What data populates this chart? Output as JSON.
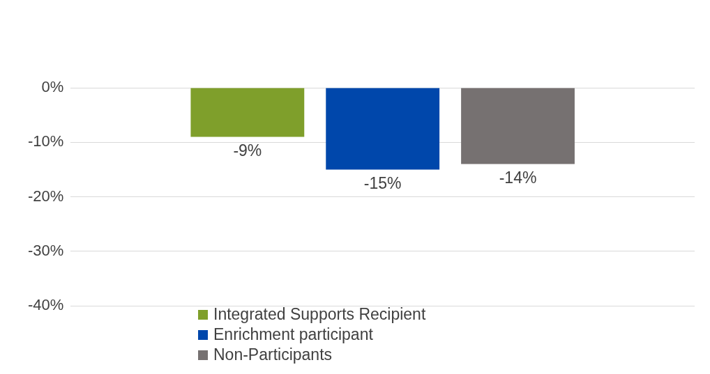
{
  "chart_data": {
    "type": "bar",
    "categories": [
      null
    ],
    "series": [
      {
        "name": "Integrated Supports Recipient",
        "color": "#7f9f2b",
        "values": [
          -9
        ],
        "value_labels": [
          "-9%"
        ]
      },
      {
        "name": "Enrichment participant",
        "color": "#0047ab",
        "values": [
          -15
        ],
        "value_labels": [
          "-15%"
        ]
      },
      {
        "name": "Non-Participants",
        "color": "#767171",
        "values": [
          -14
        ],
        "value_labels": [
          "-14%"
        ]
      }
    ],
    "ylim": [
      -40,
      0
    ],
    "yticks": [
      {
        "value": 0,
        "label": "0%"
      },
      {
        "value": -10,
        "label": "-10%"
      },
      {
        "value": -20,
        "label": "-20%"
      },
      {
        "value": -30,
        "label": "-30%"
      },
      {
        "value": -40,
        "label": "-40%"
      }
    ],
    "grid": "y",
    "legend": "bottom",
    "tick_labels": "y"
  }
}
